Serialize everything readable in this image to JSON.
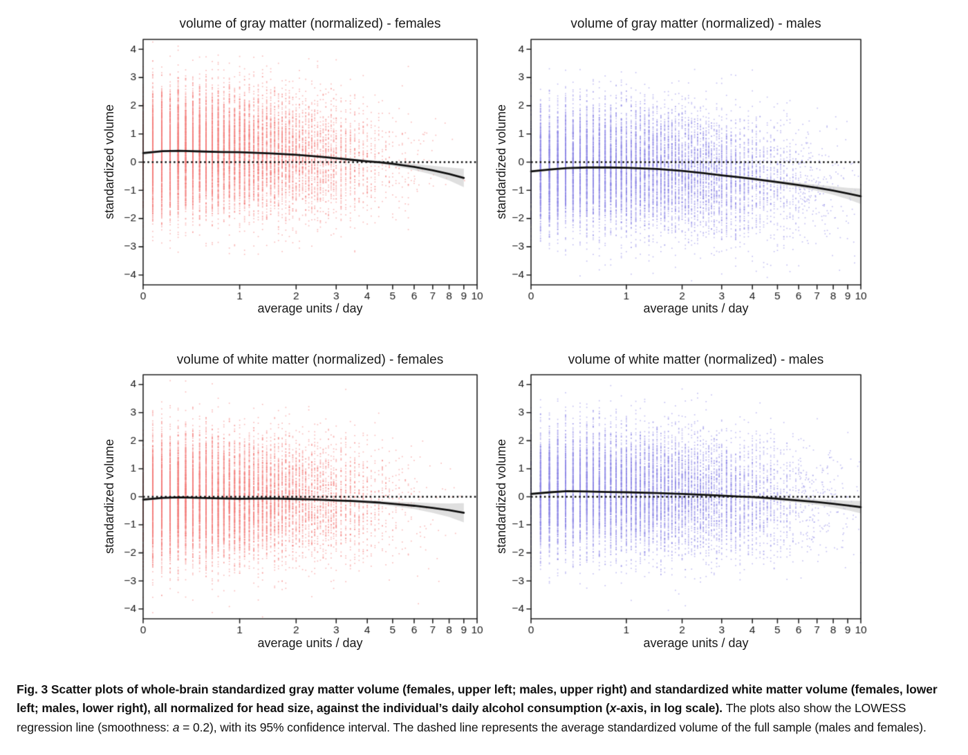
{
  "caption": {
    "segments": [
      {
        "text": "Fig. 3 Scatter plots of whole-brain standardized gray matter volume (females, upper left; males, upper right) and standardized white matter volume (females, lower left; males, lower right), all normalized for head size, against the individual’s daily alcohol consumption (",
        "bold": true
      },
      {
        "text": "x",
        "bold": true,
        "italic": true
      },
      {
        "text": "-axis, in log scale). ",
        "bold": true
      },
      {
        "text": "The plots also show the LOWESS regression line (smoothness: "
      },
      {
        "text": "a",
        "italic": true
      },
      {
        "text": " = 0.2), with its 95% confidence interval. The dashed line represents the average standardized volume of the full sample (males and females)."
      }
    ]
  },
  "colors": {
    "female_points": "#f5807e",
    "male_points": "#8d87e8",
    "lowess_line": "#111111",
    "ci_band": "#c9c9c9",
    "zero_line": "#111111",
    "axis": "#222222",
    "tick_text": "#1a1a1a",
    "background": "#ffffff"
  },
  "chart_data": [
    {
      "id": "gray-matter-females",
      "type": "scatter",
      "title": "volume of gray matter (normalized) - females",
      "xlabel": "average units / day",
      "ylabel": "standardized volume",
      "x_scale": "log1p",
      "xlim": [
        0,
        10
      ],
      "ylim": [
        -4.35,
        4.35
      ],
      "x_ticks": [
        0,
        1,
        2,
        3,
        4,
        5,
        6,
        7,
        8,
        9,
        10
      ],
      "y_ticks": [
        4,
        3,
        2,
        1,
        0,
        -1,
        -2,
        -3,
        -4
      ],
      "y_tick_labels": [
        "4",
        "3",
        "2",
        "1",
        "0",
        "−1",
        "−2",
        "−3",
        "−4"
      ],
      "zero_line_y": 0,
      "point_color": "#f5807e",
      "lowess": {
        "x": [
          0,
          0.15,
          0.3,
          0.5,
          0.75,
          1,
          1.5,
          2,
          2.5,
          3,
          3.5,
          4,
          4.5,
          5,
          6,
          7,
          8,
          9
        ],
        "y": [
          0.32,
          0.39,
          0.4,
          0.38,
          0.36,
          0.35,
          0.31,
          0.26,
          0.2,
          0.14,
          0.08,
          0.03,
          -0.01,
          -0.06,
          -0.17,
          -0.29,
          -0.42,
          -0.56
        ],
        "ci_halfwidth": [
          0.06,
          0.04,
          0.03,
          0.03,
          0.03,
          0.03,
          0.03,
          0.03,
          0.03,
          0.04,
          0.04,
          0.05,
          0.06,
          0.07,
          0.11,
          0.16,
          0.23,
          0.33
        ]
      },
      "scatter_sim": {
        "n": 12500,
        "x_exp_scale": 1.05,
        "x_max": 9.2,
        "y_sd": 1.05,
        "seed": 101,
        "point_alpha": 0.5
      }
    },
    {
      "id": "gray-matter-males",
      "type": "scatter",
      "title": "volume of gray matter (normalized) - males",
      "xlabel": "average units / day",
      "ylabel": "standardized volume",
      "x_scale": "log1p",
      "xlim": [
        0,
        10
      ],
      "ylim": [
        -4.35,
        4.35
      ],
      "x_ticks": [
        0,
        1,
        2,
        3,
        4,
        5,
        6,
        7,
        8,
        9,
        10
      ],
      "y_ticks": [
        4,
        3,
        2,
        1,
        0,
        -1,
        -2,
        -3,
        -4
      ],
      "y_tick_labels": [
        "4",
        "3",
        "2",
        "1",
        "0",
        "−1",
        "−2",
        "−3",
        "−4"
      ],
      "zero_line_y": 0,
      "point_color": "#8d87e8",
      "lowess": {
        "x": [
          0,
          0.15,
          0.3,
          0.5,
          0.75,
          1,
          1.5,
          2,
          2.5,
          3,
          3.5,
          4,
          4.5,
          5,
          6,
          7,
          8,
          9,
          10
        ],
        "y": [
          -0.33,
          -0.26,
          -0.21,
          -0.19,
          -0.19,
          -0.2,
          -0.24,
          -0.31,
          -0.39,
          -0.47,
          -0.53,
          -0.59,
          -0.65,
          -0.71,
          -0.81,
          -0.91,
          -1.01,
          -1.11,
          -1.21
        ],
        "ci_halfwidth": [
          0.05,
          0.04,
          0.03,
          0.03,
          0.03,
          0.03,
          0.03,
          0.03,
          0.03,
          0.04,
          0.04,
          0.05,
          0.05,
          0.06,
          0.08,
          0.11,
          0.15,
          0.2,
          0.27
        ]
      },
      "scatter_sim": {
        "n": 12000,
        "x_exp_scale": 1.55,
        "x_max": 10,
        "y_sd": 1.05,
        "seed": 202,
        "point_alpha": 0.5
      }
    },
    {
      "id": "white-matter-females",
      "type": "scatter",
      "title": "volume of white matter (normalized) - females",
      "xlabel": "average units / day",
      "ylabel": "standardized volume",
      "x_scale": "log1p",
      "xlim": [
        0,
        10
      ],
      "ylim": [
        -4.35,
        4.35
      ],
      "x_ticks": [
        0,
        1,
        2,
        3,
        4,
        5,
        6,
        7,
        8,
        9,
        10
      ],
      "y_ticks": [
        4,
        3,
        2,
        1,
        0,
        -1,
        -2,
        -3,
        -4
      ],
      "y_tick_labels": [
        "4",
        "3",
        "2",
        "1",
        "0",
        "−1",
        "−2",
        "−3",
        "−4"
      ],
      "zero_line_y": 0,
      "point_color": "#f5807e",
      "lowess": {
        "x": [
          0,
          0.15,
          0.3,
          0.5,
          0.75,
          1,
          1.5,
          2,
          2.5,
          3,
          3.5,
          4,
          4.5,
          5,
          6,
          7,
          8,
          9
        ],
        "y": [
          -0.1,
          -0.04,
          -0.02,
          -0.04,
          -0.06,
          -0.07,
          -0.06,
          -0.08,
          -0.1,
          -0.13,
          -0.15,
          -0.18,
          -0.21,
          -0.25,
          -0.32,
          -0.4,
          -0.48,
          -0.57
        ],
        "ci_halfwidth": [
          0.06,
          0.04,
          0.03,
          0.03,
          0.03,
          0.03,
          0.03,
          0.03,
          0.03,
          0.04,
          0.05,
          0.06,
          0.07,
          0.08,
          0.12,
          0.17,
          0.24,
          0.34
        ]
      },
      "scatter_sim": {
        "n": 12500,
        "x_exp_scale": 1.05,
        "x_max": 9.2,
        "y_sd": 1.05,
        "seed": 303,
        "point_alpha": 0.5
      }
    },
    {
      "id": "white-matter-males",
      "type": "scatter",
      "title": "volume of white matter (normalized) - males",
      "xlabel": "average units / day",
      "ylabel": "standardized volume",
      "x_scale": "log1p",
      "xlim": [
        0,
        10
      ],
      "ylim": [
        -4.35,
        4.35
      ],
      "x_ticks": [
        0,
        1,
        2,
        3,
        4,
        5,
        6,
        7,
        8,
        9,
        10
      ],
      "y_ticks": [
        4,
        3,
        2,
        1,
        0,
        -1,
        -2,
        -3,
        -4
      ],
      "y_tick_labels": [
        "4",
        "3",
        "2",
        "1",
        "0",
        "−1",
        "−2",
        "−3",
        "−4"
      ],
      "zero_line_y": 0,
      "point_color": "#8d87e8",
      "lowess": {
        "x": [
          0,
          0.15,
          0.3,
          0.5,
          0.75,
          1,
          1.5,
          2,
          2.5,
          3,
          3.5,
          4,
          4.5,
          5,
          6,
          7,
          8,
          9,
          10
        ],
        "y": [
          0.1,
          0.16,
          0.2,
          0.19,
          0.17,
          0.16,
          0.13,
          0.1,
          0.07,
          0.04,
          0.01,
          -0.01,
          -0.04,
          -0.07,
          -0.13,
          -0.19,
          -0.25,
          -0.31,
          -0.37
        ],
        "ci_halfwidth": [
          0.05,
          0.04,
          0.03,
          0.03,
          0.03,
          0.03,
          0.03,
          0.03,
          0.03,
          0.04,
          0.04,
          0.05,
          0.05,
          0.06,
          0.08,
          0.1,
          0.13,
          0.17,
          0.22
        ]
      },
      "scatter_sim": {
        "n": 12000,
        "x_exp_scale": 1.55,
        "x_max": 10,
        "y_sd": 1.05,
        "seed": 404,
        "point_alpha": 0.5
      }
    }
  ]
}
